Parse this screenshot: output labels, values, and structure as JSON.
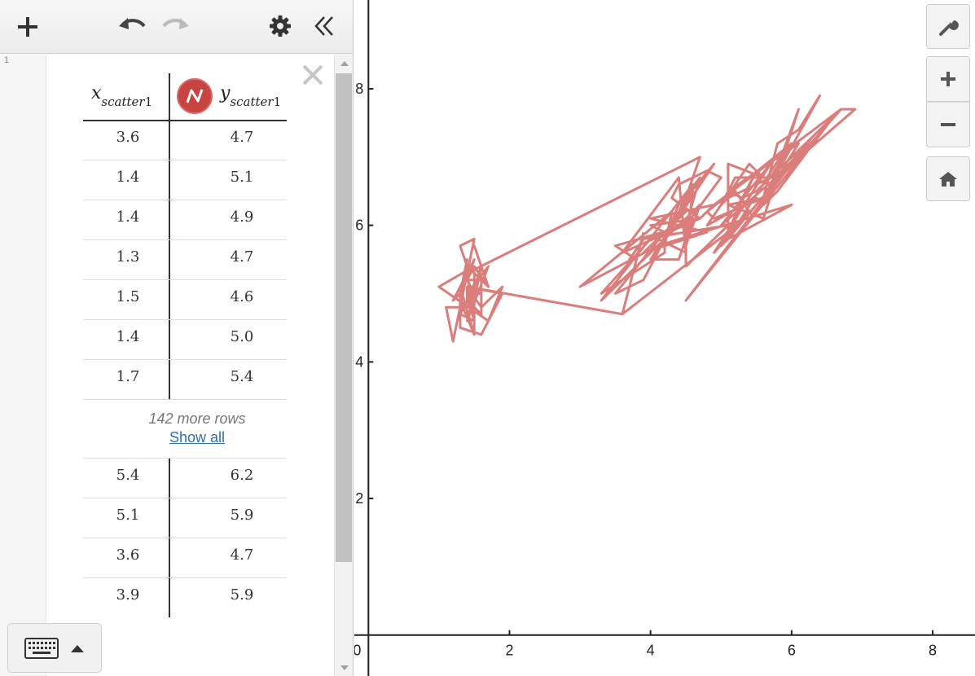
{
  "toolbar": {
    "add_icon": "plus-icon",
    "undo_icon": "undo-icon",
    "redo_icon": "redo-icon",
    "settings_icon": "gear-icon",
    "collapse_icon": "double-chevron-left-icon"
  },
  "expression": {
    "index": "1",
    "x_header": {
      "var": "x",
      "sub": "scatter",
      "num": "1"
    },
    "y_header": {
      "var": "y",
      "sub": "scatter",
      "num": "1"
    },
    "series_color": "#c74440",
    "top_rows": [
      {
        "x": "3.6",
        "y": "4.7"
      },
      {
        "x": "1.4",
        "y": "5.1"
      },
      {
        "x": "1.4",
        "y": "4.9"
      },
      {
        "x": "1.3",
        "y": "4.7"
      },
      {
        "x": "1.5",
        "y": "4.6"
      },
      {
        "x": "1.4",
        "y": "5.0"
      },
      {
        "x": "1.7",
        "y": "5.4"
      }
    ],
    "more_rows_text": "142 more rows",
    "show_all_text": "Show all",
    "bottom_rows": [
      {
        "x": "5.4",
        "y": "6.2"
      },
      {
        "x": "5.1",
        "y": "5.9"
      },
      {
        "x": "3.6",
        "y": "4.7"
      },
      {
        "x": "3.9",
        "y": "5.9"
      }
    ]
  },
  "graph_controls": {
    "settings_icon": "wrench-icon",
    "zoom_in_icon": "plus-icon",
    "zoom_out_icon": "minus-icon",
    "home_icon": "home-icon"
  },
  "chart_data": {
    "type": "line",
    "x_ticks": [
      "0",
      "2",
      "4",
      "6",
      "8"
    ],
    "y_ticks": [
      "2",
      "4",
      "6",
      "8"
    ],
    "xlim": [
      -0.2,
      8.6
    ],
    "ylim": [
      -0.6,
      9.3
    ],
    "line_color": "#d87674",
    "series": [
      {
        "x": [
          3.6,
          1.4,
          1.4,
          1.3,
          1.5,
          1.4,
          1.7,
          1.4,
          1.5,
          1.5,
          1.5,
          1.6,
          1.4,
          1.1,
          1.2,
          1.5,
          1.3,
          1.4,
          1.7,
          1.5,
          1.7,
          1.5,
          1.0,
          1.7,
          1.9,
          1.6,
          1.6,
          1.5,
          1.4,
          1.6,
          1.6,
          1.5,
          1.5,
          1.4,
          1.5,
          1.2,
          1.3,
          1.4,
          1.3,
          1.5,
          1.3,
          1.3,
          1.3,
          1.6,
          1.9,
          1.4,
          1.6,
          1.4,
          1.5,
          1.4,
          4.7,
          4.5,
          4.9,
          4.0,
          4.6,
          4.5,
          4.7,
          3.3,
          4.6,
          3.9,
          3.5,
          4.2,
          4.0,
          4.7,
          3.6,
          4.4,
          4.5,
          4.1,
          4.5,
          3.9,
          4.8,
          4.0,
          4.9,
          4.7,
          4.3,
          4.4,
          4.8,
          5.0,
          4.5,
          3.5,
          3.8,
          3.7,
          3.9,
          5.1,
          4.5,
          4.5,
          4.7,
          4.4,
          4.1,
          4.0,
          4.4,
          4.6,
          4.0,
          3.3,
          4.2,
          4.2,
          4.2,
          4.3,
          3.0,
          4.1,
          6.0,
          5.1,
          5.9,
          5.6,
          5.8,
          6.6,
          4.5,
          6.3,
          5.8,
          6.1,
          5.1,
          5.3,
          5.5,
          5.0,
          5.1,
          5.3,
          5.5,
          6.7,
          6.9,
          5.0,
          5.7,
          4.9,
          6.7,
          4.9,
          5.7,
          6.0,
          4.8,
          4.9,
          5.6,
          5.8,
          6.1,
          6.4,
          5.6,
          5.1,
          5.6,
          6.1,
          5.6,
          5.5,
          4.8,
          5.4,
          5.6,
          5.1,
          5.1,
          5.9,
          5.7,
          5.2,
          5.0,
          5.2,
          5.4,
          5.1,
          5.4,
          5.1,
          3.6,
          3.9
        ],
        "y": [
          4.7,
          5.1,
          4.9,
          4.7,
          4.6,
          5.0,
          5.4,
          4.6,
          5.0,
          4.4,
          4.9,
          5.4,
          4.8,
          4.8,
          4.3,
          5.8,
          5.7,
          5.4,
          5.1,
          5.7,
          5.1,
          5.4,
          5.1,
          4.6,
          5.1,
          4.8,
          5.0,
          5.0,
          5.2,
          5.2,
          4.7,
          4.8,
          5.4,
          5.2,
          5.5,
          4.9,
          5.0,
          5.5,
          4.9,
          4.4,
          5.1,
          5.0,
          4.5,
          4.4,
          5.0,
          5.1,
          4.8,
          5.1,
          4.6,
          5.3,
          7.0,
          6.4,
          6.9,
          5.5,
          6.5,
          5.7,
          6.3,
          4.9,
          6.6,
          5.2,
          5.0,
          5.9,
          6.0,
          6.1,
          5.6,
          6.7,
          5.6,
          5.8,
          6.2,
          5.6,
          5.9,
          6.1,
          6.3,
          6.1,
          6.4,
          6.6,
          6.8,
          6.7,
          6.0,
          5.7,
          5.5,
          5.5,
          5.8,
          6.0,
          5.4,
          6.0,
          6.7,
          6.3,
          5.6,
          5.5,
          5.5,
          6.1,
          5.8,
          5.0,
          5.6,
          5.7,
          5.7,
          6.2,
          5.1,
          5.7,
          6.3,
          5.8,
          7.1,
          6.3,
          6.5,
          7.6,
          4.9,
          7.3,
          6.7,
          7.2,
          6.5,
          6.4,
          6.8,
          5.7,
          5.8,
          6.4,
          6.5,
          7.7,
          7.7,
          6.0,
          6.9,
          5.6,
          7.7,
          6.3,
          6.7,
          7.2,
          6.2,
          6.1,
          6.4,
          7.2,
          7.4,
          7.9,
          6.4,
          6.3,
          6.1,
          7.7,
          6.3,
          6.4,
          6.0,
          6.9,
          6.7,
          6.9,
          5.8,
          6.8,
          6.7,
          6.7,
          6.3,
          6.5,
          6.2,
          5.9,
          6.2,
          5.9,
          4.7,
          5.9
        ]
      }
    ]
  }
}
